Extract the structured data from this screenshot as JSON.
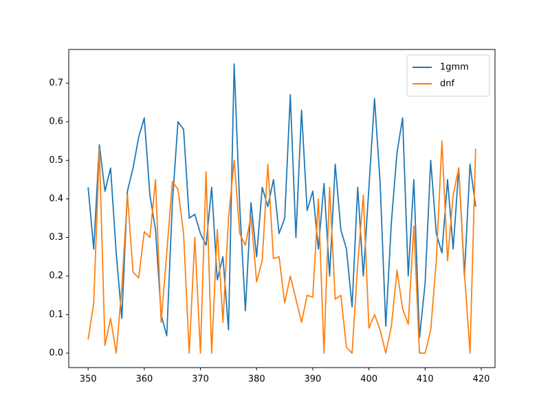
{
  "chart_data": {
    "type": "line",
    "x": [
      350,
      351,
      352,
      353,
      354,
      355,
      356,
      357,
      358,
      359,
      360,
      361,
      362,
      363,
      364,
      365,
      366,
      367,
      368,
      369,
      370,
      371,
      372,
      373,
      374,
      375,
      376,
      377,
      378,
      379,
      380,
      381,
      382,
      383,
      384,
      385,
      386,
      387,
      388,
      389,
      390,
      391,
      392,
      393,
      394,
      395,
      396,
      397,
      398,
      399,
      400,
      401,
      402,
      403,
      404,
      405,
      406,
      407,
      408,
      409,
      410,
      411,
      412,
      413,
      414,
      415,
      416,
      417,
      418,
      419
    ],
    "series": [
      {
        "name": "1gmm",
        "color": "#1f77b4",
        "values": [
          0.43,
          0.27,
          0.54,
          0.42,
          0.48,
          0.26,
          0.09,
          0.42,
          0.48,
          0.56,
          0.61,
          0.41,
          0.32,
          0.1,
          0.045,
          0.39,
          0.6,
          0.58,
          0.35,
          0.36,
          0.31,
          0.28,
          0.43,
          0.19,
          0.25,
          0.06,
          0.75,
          0.38,
          0.11,
          0.39,
          0.25,
          0.43,
          0.38,
          0.45,
          0.31,
          0.35,
          0.67,
          0.3,
          0.63,
          0.37,
          0.42,
          0.27,
          0.44,
          0.2,
          0.49,
          0.32,
          0.27,
          0.12,
          0.43,
          0.2,
          0.43,
          0.66,
          0.44,
          0.07,
          0.34,
          0.52,
          0.61,
          0.2,
          0.45,
          0.04,
          0.18,
          0.5,
          0.31,
          0.26,
          0.45,
          0.27,
          0.48,
          0.2,
          0.49,
          0.38
        ]
      },
      {
        "name": "dnf",
        "color": "#ff7f0e",
        "values": [
          0.035,
          0.13,
          0.53,
          0.02,
          0.09,
          0.0,
          0.17,
          0.41,
          0.21,
          0.195,
          0.315,
          0.3,
          0.45,
          0.08,
          0.26,
          0.445,
          0.425,
          0.31,
          0.0,
          0.3,
          0.0,
          0.47,
          0.0,
          0.32,
          0.08,
          0.35,
          0.5,
          0.31,
          0.28,
          0.355,
          0.185,
          0.24,
          0.49,
          0.245,
          0.25,
          0.13,
          0.2,
          0.14,
          0.08,
          0.15,
          0.145,
          0.4,
          0.0,
          0.43,
          0.14,
          0.15,
          0.015,
          0.0,
          0.23,
          0.41,
          0.065,
          0.1,
          0.06,
          0.0,
          0.07,
          0.215,
          0.115,
          0.075,
          0.33,
          0.0,
          0.0,
          0.06,
          0.24,
          0.55,
          0.24,
          0.41,
          0.48,
          0.21,
          0.0,
          0.53
        ]
      }
    ],
    "xlim": [
      346.55,
      422.45
    ],
    "xticks": [
      350,
      360,
      370,
      380,
      390,
      400,
      410,
      420
    ],
    "ylim": [
      -0.0375,
      0.7875
    ],
    "yticks": [
      {
        "value": 0,
        "label": "0.0"
      },
      0.1,
      0.2,
      0.3,
      0.4,
      0.5,
      0.6,
      0.7
    ],
    "legend": "upper right",
    "grid": false
  }
}
